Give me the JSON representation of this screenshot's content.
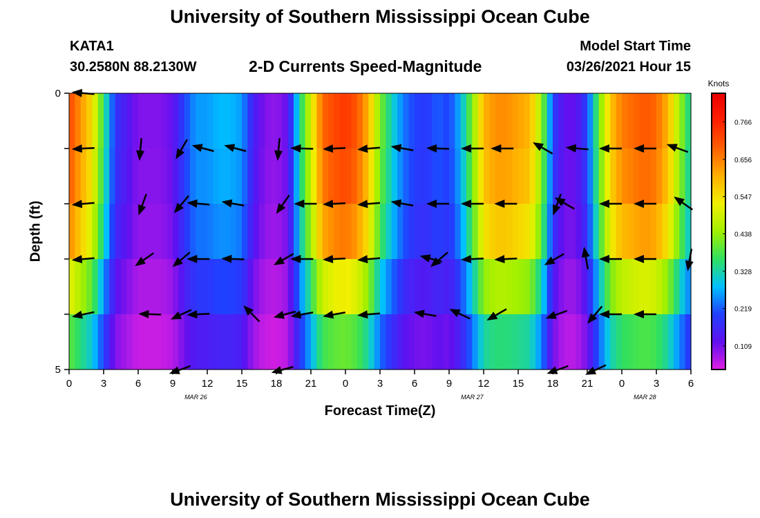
{
  "header": {
    "title": "University of Southern Mississippi Ocean Cube",
    "station_id": "KATA1",
    "station_coords": "30.2580N 88.2130W",
    "subtitle": "2-D Currents Speed-Magnitude",
    "model_start_label": "Model Start Time",
    "model_start_value": "03/26/2021 Hour 15"
  },
  "footer": {
    "title": "University of Southern Mississippi Ocean Cube"
  },
  "chart_data": {
    "type": "heatmap",
    "title": "2-D Currents Speed-Magnitude",
    "xlabel": "Forecast Time(Z)",
    "ylabel": "Depth (ft)",
    "x_ticks": [
      "0",
      "3",
      "6",
      "9",
      "12",
      "15",
      "18",
      "21",
      "0",
      "3",
      "6",
      "9",
      "12",
      "15",
      "18",
      "21",
      "0",
      "3",
      "6"
    ],
    "x_hours": [
      0,
      3,
      6,
      9,
      12,
      15,
      18,
      21,
      24,
      27,
      30,
      33,
      36,
      39,
      42,
      45,
      48,
      51,
      54
    ],
    "date_labels": [
      {
        "label": "MAR 26",
        "hour": 11
      },
      {
        "label": "MAR 27",
        "hour": 35
      },
      {
        "label": "MAR 28",
        "hour": 50
      }
    ],
    "y_ticks": [
      "0",
      "5"
    ],
    "ylim": [
      0,
      5
    ],
    "xlim": [
      0,
      54
    ],
    "colorbar": {
      "title": "Knots",
      "ticks": [
        "0.766",
        "0.656",
        "0.547",
        "0.438",
        "0.328",
        "0.219",
        "0.109"
      ],
      "tick_values": [
        0.766,
        0.656,
        0.547,
        0.438,
        0.328,
        0.219,
        0.109
      ],
      "range": [
        0.04,
        0.85
      ],
      "colors": [
        "#e020e0",
        "#6010f0",
        "#2040ff",
        "#00c0ff",
        "#30e060",
        "#a0f000",
        "#f0f000",
        "#ffb000",
        "#ff6000",
        "#ff2000",
        "#e80000"
      ]
    },
    "depth_layers": [
      0.5,
      1.5,
      2.5,
      3.5,
      4.5
    ],
    "speed_profile": {
      "hours": [
        0,
        2,
        3,
        4,
        6,
        8,
        9,
        10,
        11,
        12,
        13,
        14,
        15,
        16,
        17,
        18,
        19,
        20,
        21,
        22,
        23,
        24,
        25,
        26,
        27,
        28,
        29,
        30,
        31,
        32,
        33,
        34,
        35,
        36,
        37,
        38,
        39,
        40,
        41,
        42,
        43,
        44,
        45,
        46,
        47,
        48,
        49,
        50,
        51,
        52,
        53,
        54
      ],
      "values": [
        0.72,
        0.55,
        0.36,
        0.18,
        0.1,
        0.1,
        0.12,
        0.2,
        0.26,
        0.26,
        0.28,
        0.28,
        0.26,
        0.15,
        0.1,
        0.09,
        0.12,
        0.33,
        0.5,
        0.68,
        0.72,
        0.74,
        0.7,
        0.6,
        0.42,
        0.32,
        0.24,
        0.2,
        0.19,
        0.22,
        0.2,
        0.28,
        0.42,
        0.6,
        0.64,
        0.64,
        0.62,
        0.6,
        0.45,
        0.2,
        0.12,
        0.12,
        0.2,
        0.4,
        0.58,
        0.66,
        0.68,
        0.7,
        0.68,
        0.6,
        0.45,
        0.32
      ]
    },
    "depth_factor": [
      1.0,
      0.97,
      0.9,
      0.72,
      0.55
    ],
    "vectors": [
      {
        "hour": 1.3,
        "depth": 0,
        "angle": 5
      },
      {
        "hour": 1.3,
        "depth": 1,
        "angle": -3
      },
      {
        "hour": 6.2,
        "depth": 1,
        "angle": -85
      },
      {
        "hour": 9.8,
        "depth": 1,
        "angle": -60
      },
      {
        "hour": 11.7,
        "depth": 1,
        "angle": 15
      },
      {
        "hour": 14.5,
        "depth": 1,
        "angle": 15
      },
      {
        "hour": 18.2,
        "depth": 1,
        "angle": -85
      },
      {
        "hour": 20.3,
        "depth": 1,
        "angle": 2
      },
      {
        "hour": 23.1,
        "depth": 1,
        "angle": -3
      },
      {
        "hour": 26.1,
        "depth": 1,
        "angle": -5
      },
      {
        "hour": 29.0,
        "depth": 1,
        "angle": 10
      },
      {
        "hour": 32.1,
        "depth": 1,
        "angle": 2
      },
      {
        "hour": 35.1,
        "depth": 1,
        "angle": 0
      },
      {
        "hour": 37.7,
        "depth": 1,
        "angle": 0
      },
      {
        "hour": 41.2,
        "depth": 1,
        "angle": 30
      },
      {
        "hour": 44.2,
        "depth": 1,
        "angle": 5
      },
      {
        "hour": 47.1,
        "depth": 1,
        "angle": 0
      },
      {
        "hour": 50.1,
        "depth": 1,
        "angle": 0
      },
      {
        "hour": 52.9,
        "depth": 1,
        "angle": 20
      },
      {
        "hour": 1.3,
        "depth": 2,
        "angle": -5
      },
      {
        "hour": 6.4,
        "depth": 2,
        "angle": -70
      },
      {
        "hour": 9.8,
        "depth": 2,
        "angle": -50
      },
      {
        "hour": 11.3,
        "depth": 2,
        "angle": 5
      },
      {
        "hour": 14.3,
        "depth": 2,
        "angle": 10
      },
      {
        "hour": 18.6,
        "depth": 2,
        "angle": -55
      },
      {
        "hour": 20.6,
        "depth": 2,
        "angle": 0
      },
      {
        "hour": 23.1,
        "depth": 2,
        "angle": -3
      },
      {
        "hour": 26.1,
        "depth": 2,
        "angle": -5
      },
      {
        "hour": 29.0,
        "depth": 2,
        "angle": 10
      },
      {
        "hour": 32.1,
        "depth": 2,
        "angle": 0
      },
      {
        "hour": 35.1,
        "depth": 2,
        "angle": 0
      },
      {
        "hour": 38.0,
        "depth": 2,
        "angle": 0
      },
      {
        "hour": 43.1,
        "depth": 2,
        "angle": 30
      },
      {
        "hour": 47.1,
        "depth": 2,
        "angle": 0
      },
      {
        "hour": 50.1,
        "depth": 2,
        "angle": 0
      },
      {
        "hour": 53.4,
        "depth": 2,
        "angle": 35
      },
      {
        "hour": 42.4,
        "depth": 2,
        "angle": -70
      },
      {
        "hour": 1.3,
        "depth": 3,
        "angle": -5
      },
      {
        "hour": 6.6,
        "depth": 3,
        "angle": -35
      },
      {
        "hour": 9.8,
        "depth": 3,
        "angle": -40
      },
      {
        "hour": 11.3,
        "depth": 3,
        "angle": 0
      },
      {
        "hour": 14.3,
        "depth": 3,
        "angle": 2
      },
      {
        "hour": 18.7,
        "depth": 3,
        "angle": -30
      },
      {
        "hour": 20.3,
        "depth": 3,
        "angle": 0
      },
      {
        "hour": 23.1,
        "depth": 3,
        "angle": -3
      },
      {
        "hour": 26.1,
        "depth": 3,
        "angle": -5
      },
      {
        "hour": 31.5,
        "depth": 3,
        "angle": 15
      },
      {
        "hour": 32.2,
        "depth": 3,
        "angle": -40
      },
      {
        "hour": 35.1,
        "depth": 3,
        "angle": -3
      },
      {
        "hour": 38.0,
        "depth": 3,
        "angle": -3
      },
      {
        "hour": 42.2,
        "depth": 3,
        "angle": -30
      },
      {
        "hour": 44.9,
        "depth": 3,
        "angle": 80
      },
      {
        "hour": 47.1,
        "depth": 3,
        "angle": 0
      },
      {
        "hour": 50.1,
        "depth": 3,
        "angle": 0
      },
      {
        "hour": 53.9,
        "depth": 3,
        "angle": -80
      },
      {
        "hour": 1.3,
        "depth": 4,
        "angle": -12
      },
      {
        "hour": 7.1,
        "depth": 4,
        "angle": 2
      },
      {
        "hour": 9.8,
        "depth": 4,
        "angle": -25
      },
      {
        "hour": 11.3,
        "depth": 4,
        "angle": -3
      },
      {
        "hour": 15.9,
        "depth": 4,
        "angle": 45
      },
      {
        "hour": 18.8,
        "depth": 4,
        "angle": -15
      },
      {
        "hour": 20.3,
        "depth": 4,
        "angle": -10
      },
      {
        "hour": 23.1,
        "depth": 4,
        "angle": -10
      },
      {
        "hour": 26.1,
        "depth": 4,
        "angle": -5
      },
      {
        "hour": 31.0,
        "depth": 4,
        "angle": 10
      },
      {
        "hour": 34.0,
        "depth": 4,
        "angle": 25
      },
      {
        "hour": 37.2,
        "depth": 4,
        "angle": -30
      },
      {
        "hour": 42.4,
        "depth": 4,
        "angle": -20
      },
      {
        "hour": 45.7,
        "depth": 4,
        "angle": -50
      },
      {
        "hour": 47.1,
        "depth": 4,
        "angle": 0
      },
      {
        "hour": 50.1,
        "depth": 4,
        "angle": 0
      },
      {
        "hour": 9.7,
        "depth": 5,
        "angle": -20
      },
      {
        "hour": 18.6,
        "depth": 5,
        "angle": -15
      },
      {
        "hour": 42.5,
        "depth": 5,
        "angle": -20
      },
      {
        "hour": 45.8,
        "depth": 5,
        "angle": -25
      }
    ]
  }
}
